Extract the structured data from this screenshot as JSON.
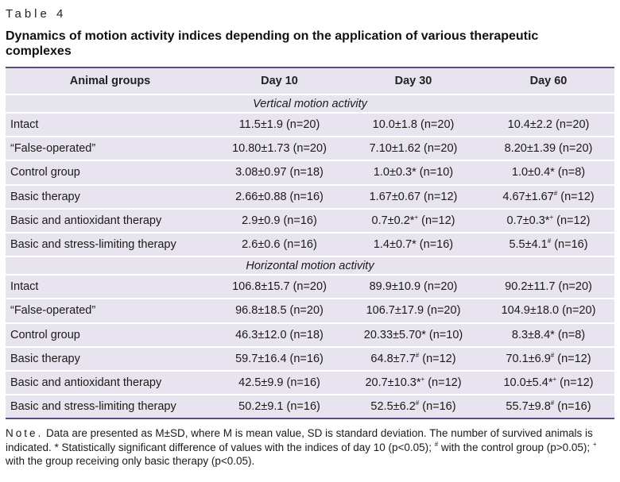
{
  "table_label": "Table 4",
  "title": "Dynamics of motion activity indices depending on the application of various therapeutic complexes",
  "headers": [
    "Animal groups",
    "Day 10",
    "Day 30",
    "Day 60"
  ],
  "sections": [
    {
      "label": "Vertical motion activity",
      "rows": [
        {
          "group": "Intact",
          "d10": "11.5±1.9 (n=20)",
          "d30": "10.0±1.8 (n=20)",
          "d60": "10.4±2.2 (n=20)"
        },
        {
          "group": "“False-operated”",
          "d10": "10.80±1.73 (n=20)",
          "d30": "7.10±1.62 (n=20)",
          "d60": "8.20±1.39 (n=20)"
        },
        {
          "group": "Control group",
          "d10": "3.08±0.97 (n=18)",
          "d30": "1.0±0.3* (n=10)",
          "d60": "1.0±0.4* (n=8)"
        },
        {
          "group": "Basic therapy",
          "d10": "2.66±0.88 (n=16)",
          "d30": "1.67±0.67 (n=12)",
          "d60": "4.67±1.67# (n=12)"
        },
        {
          "group": "Basic and antioxidant therapy",
          "d10": "2.9±0.9 (n=16)",
          "d30": "0.7±0.2*+ (n=12)",
          "d60": "0.7±0.3*+ (n=12)"
        },
        {
          "group": "Basic and stress-limiting therapy",
          "d10": "2.6±0.6 (n=16)",
          "d30": "1.4±0.7* (n=16)",
          "d60": "5.5±4.1# (n=16)"
        }
      ]
    },
    {
      "label": "Horizontal motion activity",
      "rows": [
        {
          "group": "Intact",
          "d10": "106.8±15.7 (n=20)",
          "d30": "89.9±10.9 (n=20)",
          "d60": "90.2±11.7 (n=20)"
        },
        {
          "group": "“False-operated”",
          "d10": "96.8±18.5 (n=20)",
          "d30": "106.7±17.9 (n=20)",
          "d60": "104.9±18.0 (n=20)"
        },
        {
          "group": "Control group",
          "d10": "46.3±12.0 (n=18)",
          "d30": "20.33±5.70* (n=10)",
          "d60": "8.3±8.4* (n=8)"
        },
        {
          "group": "Basic therapy",
          "d10": "59.7±16.4 (n=16)",
          "d30": "64.8±7.7# (n=12)",
          "d60": "70.1±6.9# (n=12)"
        },
        {
          "group": "Basic and antioxidant therapy",
          "d10": "42.5±9.9 (n=16)",
          "d30": "20.7±10.3*+ (n=12)",
          "d60": "10.0±5.4*+ (n=12)"
        },
        {
          "group": "Basic and stress-limiting therapy",
          "d10": "50.2±9.1 (n=16)",
          "d30": "52.5±6.2# (n=16)",
          "d60": "55.7±9.8# (n=16)"
        }
      ]
    }
  ],
  "note_label": "Note.",
  "note_text": "Data are presented as M±SD, where M is mean value, SD is standard deviation. The number of survived animals is indicated. * Statistically significant difference of values with the indices of day 10 (p<0.05); # with the control group (p>0.05); + with the group receiving only basic therapy (p<0.05).",
  "colors": {
    "row_bg": "#e8e4ef",
    "rule": "#5c4a7a"
  }
}
